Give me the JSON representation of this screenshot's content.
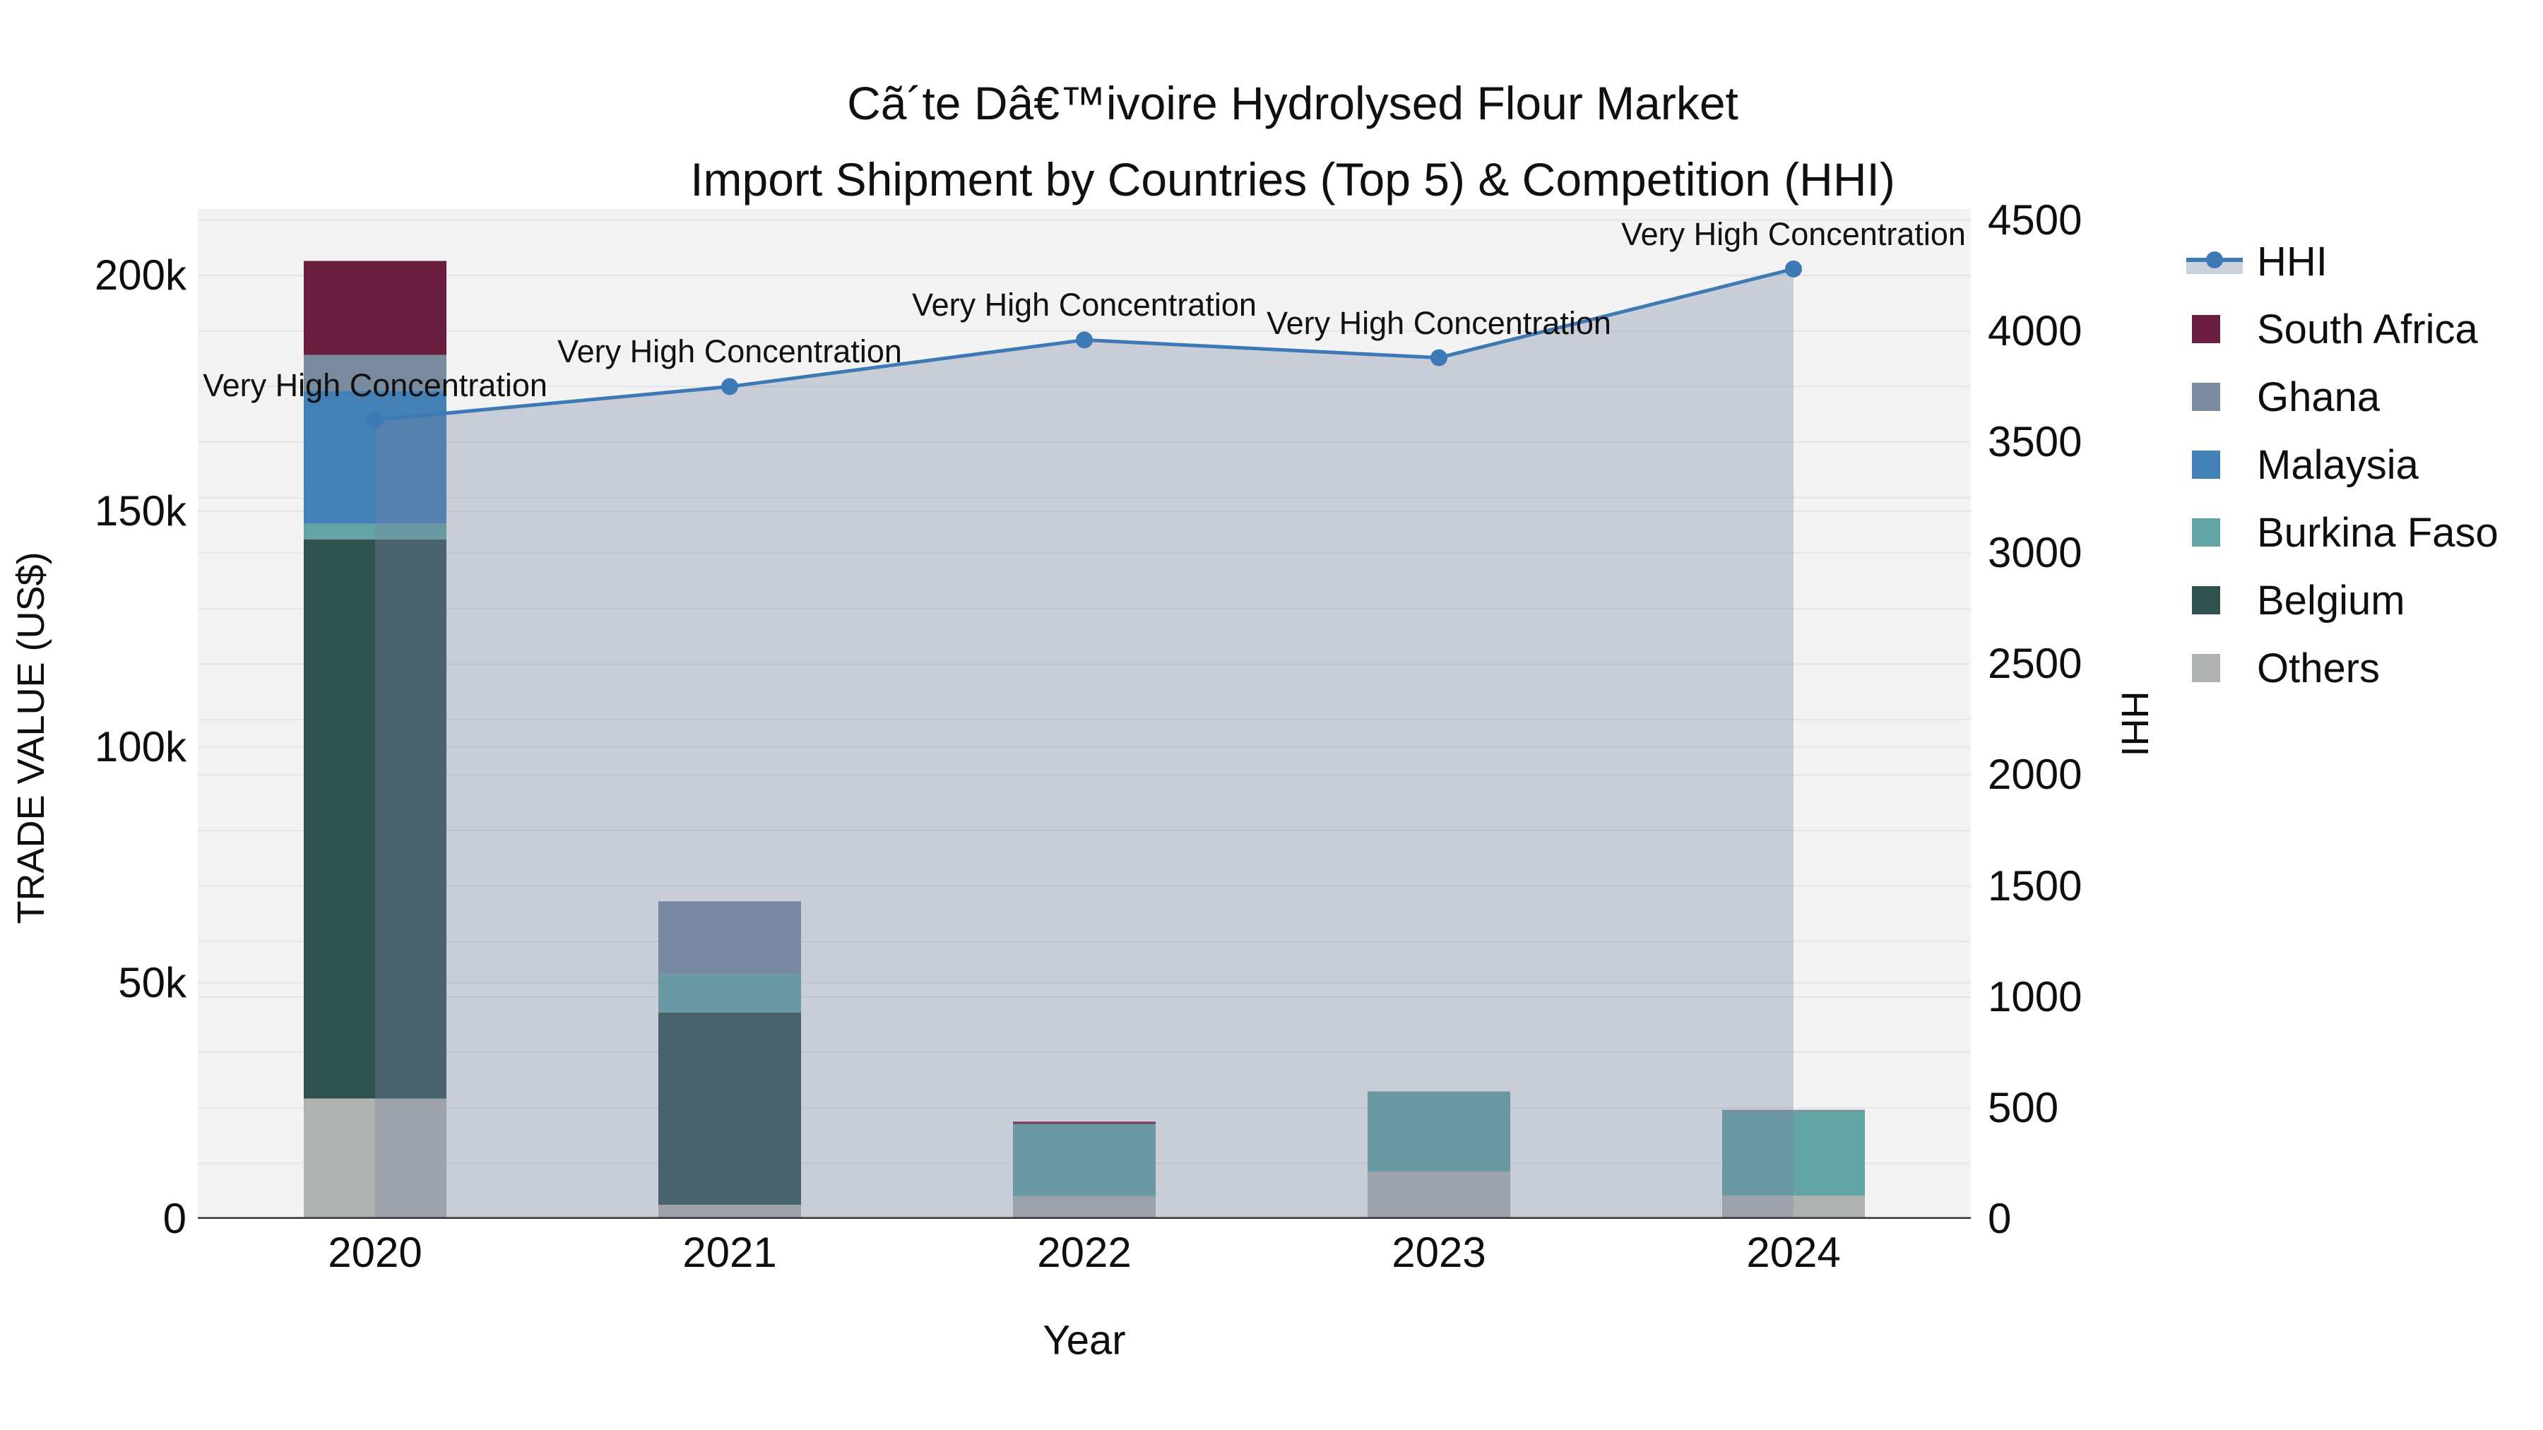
{
  "title": {
    "line1": "Cã´te Dâ€™ivoire Hydrolysed Flour Market",
    "line2": "Import Shipment by Countries (Top 5) & Competition (HHI)"
  },
  "axes": {
    "x": {
      "title": "Year",
      "categories": [
        "2020",
        "2021",
        "2022",
        "2023",
        "2024"
      ]
    },
    "y_left": {
      "title": "TRADE VALUE (US$)",
      "tick_labels": [
        "0",
        "50k",
        "100k",
        "150k",
        "200k"
      ],
      "tick_values": [
        0,
        50000,
        100000,
        150000,
        200000
      ],
      "range": [
        0,
        214000
      ]
    },
    "y_right": {
      "title": "HHI",
      "tick_labels": [
        "0",
        "500",
        "1000",
        "1500",
        "2000",
        "2500",
        "3000",
        "3500",
        "4000",
        "4500"
      ],
      "tick_values": [
        0,
        500,
        1000,
        1500,
        2000,
        2500,
        3000,
        3500,
        4000,
        4500
      ],
      "range": [
        0,
        4550
      ],
      "grid_step": 250
    }
  },
  "legend": {
    "items": [
      {
        "label": "HHI",
        "type": "line",
        "color": "#3D7AB5"
      },
      {
        "label": "South Africa",
        "type": "square",
        "color": "#6B1F3E"
      },
      {
        "label": "Ghana",
        "type": "square",
        "color": "#7A8BA0"
      },
      {
        "label": "Malaysia",
        "type": "square",
        "color": "#4280B5"
      },
      {
        "label": "Burkina Faso",
        "type": "square",
        "color": "#63A5A4"
      },
      {
        "label": "Belgium",
        "type": "square",
        "color": "#2F524F"
      },
      {
        "label": "Others",
        "type": "square",
        "color": "#B0B2B1"
      }
    ]
  },
  "chart_data": {
    "type": "bar+line",
    "title": "Cã´te Dâ€™ivoire Hydrolysed Flour Market — Import Shipment by Countries (Top 5) & Competition (HHI)",
    "categories": [
      "2020",
      "2021",
      "2022",
      "2023",
      "2024"
    ],
    "xlabel": "Year",
    "ylabel_left": "TRADE VALUE (US$)",
    "ylabel_right": "HHI",
    "y_left_range": [
      0,
      214000
    ],
    "y_right_range": [
      0,
      4550
    ],
    "grid": true,
    "legend_position": "right",
    "bar_series_bottom_to_top": [
      {
        "name": "Others",
        "color": "#B0B2B1",
        "values": [
          25500,
          3000,
          4800,
          10000,
          4900
        ]
      },
      {
        "name": "Belgium",
        "color": "#2F524F",
        "values": [
          118500,
          40700,
          0,
          0,
          0
        ]
      },
      {
        "name": "Burkina Faso",
        "color": "#63A5A4",
        "values": [
          3300,
          8300,
          15300,
          17000,
          17800
        ]
      },
      {
        "name": "Malaysia",
        "color": "#4280B5",
        "values": [
          28200,
          0,
          0,
          0,
          0
        ]
      },
      {
        "name": "Ghana",
        "color": "#7A8BA0",
        "values": [
          7600,
          15300,
          0,
          0,
          400
        ]
      },
      {
        "name": "South Africa",
        "color": "#6B1F3E",
        "values": [
          19900,
          0,
          500,
          0,
          0
        ]
      }
    ],
    "line_series": {
      "name": "HHI",
      "color": "#3D7AB5",
      "area_fill": "rgba(119,132,160,0.34)",
      "values": [
        3600,
        3750,
        3960,
        3880,
        4280
      ],
      "annotations": [
        "Very High Concentration",
        "Very High Concentration",
        "Very High Concentration",
        "Very High Concentration",
        "Very High Concentration"
      ]
    }
  },
  "colors": {
    "plot_bg": "#F3F3F4",
    "grid": "#E3E5E7",
    "zeroline": "#30363B",
    "text": "#111111",
    "hhi_line": "#3D7AB5",
    "area_fill": "rgba(119,132,160,0.34)"
  }
}
